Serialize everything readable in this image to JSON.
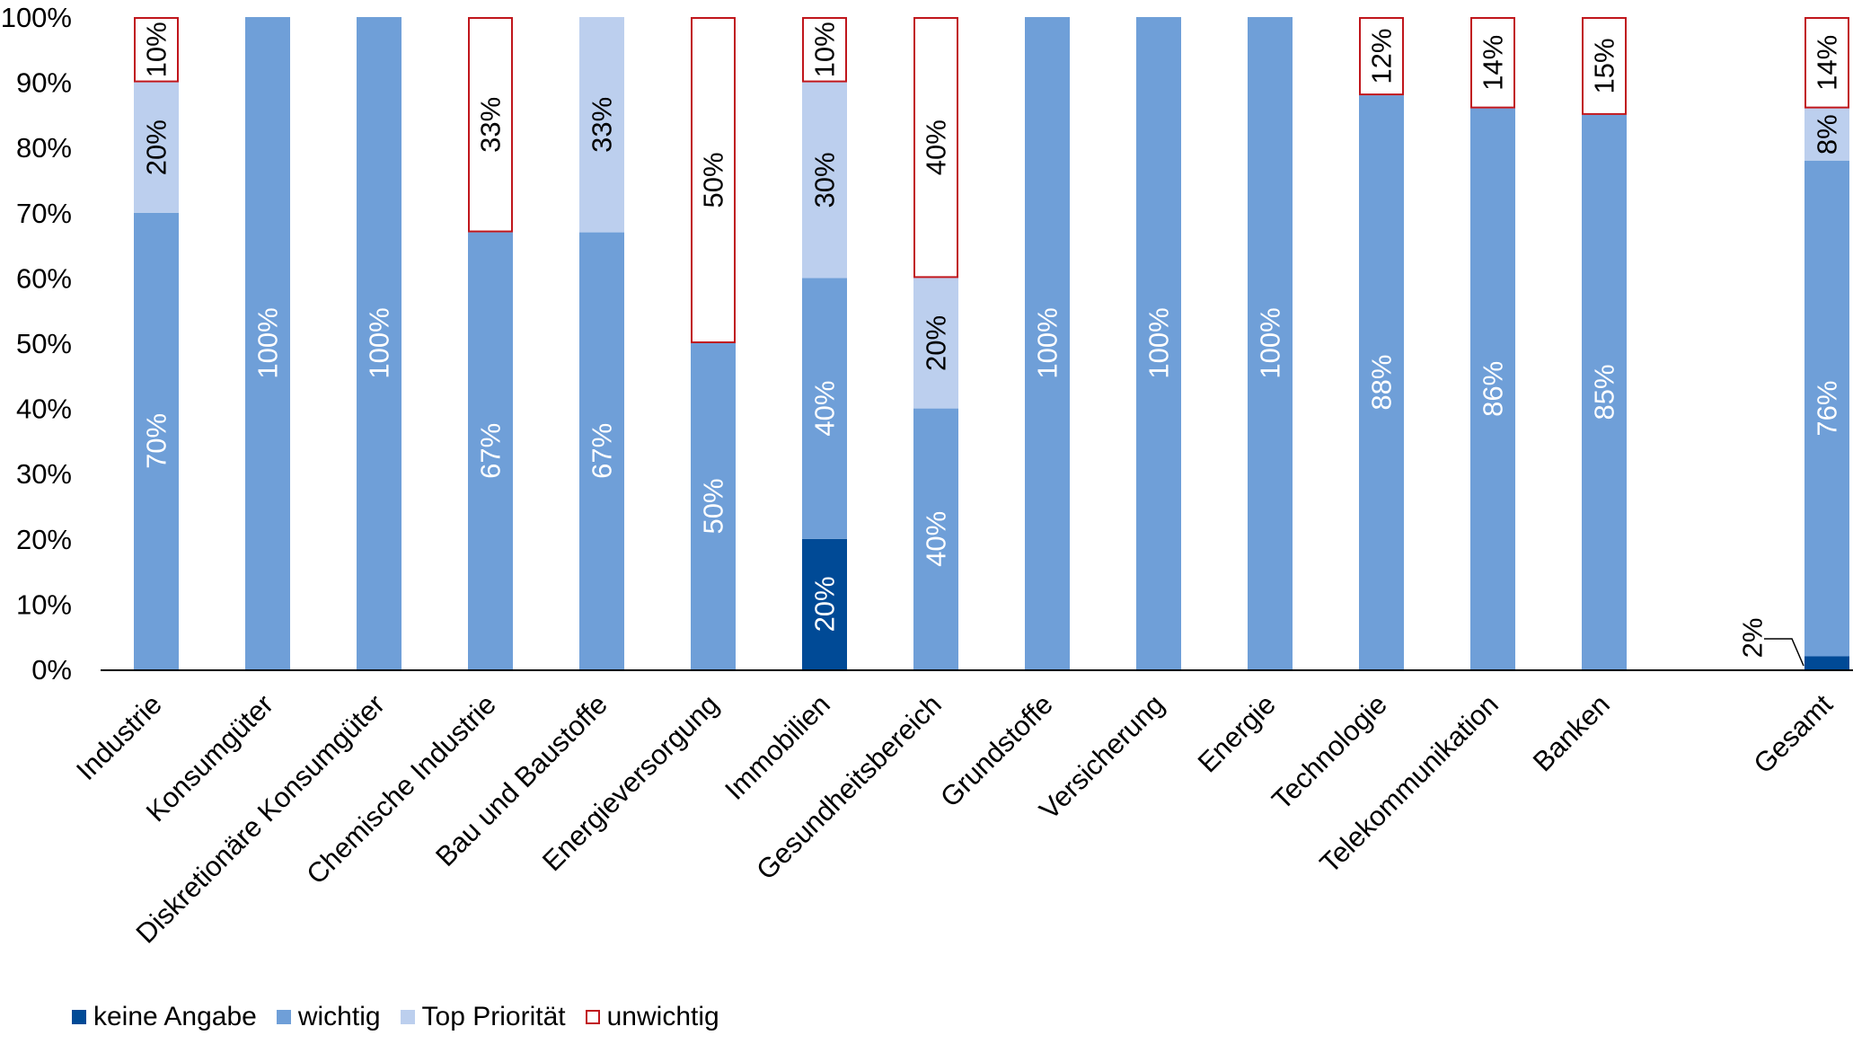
{
  "chart_data": {
    "type": "bar",
    "stacked": true,
    "title": "",
    "xlabel": "",
    "ylabel": "",
    "ylim": [
      0,
      100
    ],
    "yticks": [
      "0%",
      "10%",
      "20%",
      "30%",
      "40%",
      "50%",
      "60%",
      "70%",
      "80%",
      "90%",
      "100%"
    ],
    "grid": false,
    "legend_position": "bottom-left",
    "categories": [
      "Industrie",
      "Konsumgüter",
      "Diskretionäre Konsumgüter",
      "Chemische Industrie",
      "Bau und Baustoffe",
      "Energieversorgung",
      "Immobilien",
      "Gesundheitsbereich",
      "Grundstoffe",
      "Versicherung",
      "Energie",
      "Technologie",
      "Telekommunikation",
      "Banken",
      "Gesamt"
    ],
    "series": [
      {
        "name": "keine Angabe",
        "color": "#004a96",
        "values": [
          0,
          0,
          0,
          0,
          0,
          0,
          20,
          0,
          0,
          0,
          0,
          0,
          0,
          0,
          2
        ],
        "labels": [
          "",
          "",
          "",
          "",
          "",
          "",
          "20%",
          "",
          "",
          "",
          "",
          "",
          "",
          "",
          "2%"
        ]
      },
      {
        "name": "wichtig",
        "color": "#6f9fd8",
        "values": [
          70,
          100,
          100,
          67,
          67,
          50,
          40,
          40,
          100,
          100,
          100,
          88,
          86,
          85,
          76
        ],
        "labels": [
          "70%",
          "100%",
          "100%",
          "67%",
          "67%",
          "50%",
          "40%",
          "40%",
          "100%",
          "100%",
          "100%",
          "88%",
          "86%",
          "85%",
          "76%"
        ]
      },
      {
        "name": "Top Priorität",
        "color": "#bccfee",
        "values": [
          20,
          0,
          0,
          0,
          33,
          0,
          30,
          20,
          0,
          0,
          0,
          0,
          0,
          0,
          8
        ],
        "labels": [
          "20%",
          "",
          "",
          "",
          "33%",
          "",
          "30%",
          "20%",
          "",
          "",
          "",
          "",
          "",
          "",
          "8%"
        ]
      },
      {
        "name": "unwichtig",
        "color": "#c0161c",
        "values": [
          10,
          0,
          0,
          33,
          0,
          50,
          10,
          40,
          0,
          0,
          0,
          12,
          14,
          15,
          14
        ],
        "labels": [
          "10%",
          "",
          "",
          "33%",
          "",
          "50%",
          "10%",
          "40%",
          "",
          "",
          "",
          "12%",
          "14%",
          "15%",
          "14%"
        ]
      }
    ]
  }
}
